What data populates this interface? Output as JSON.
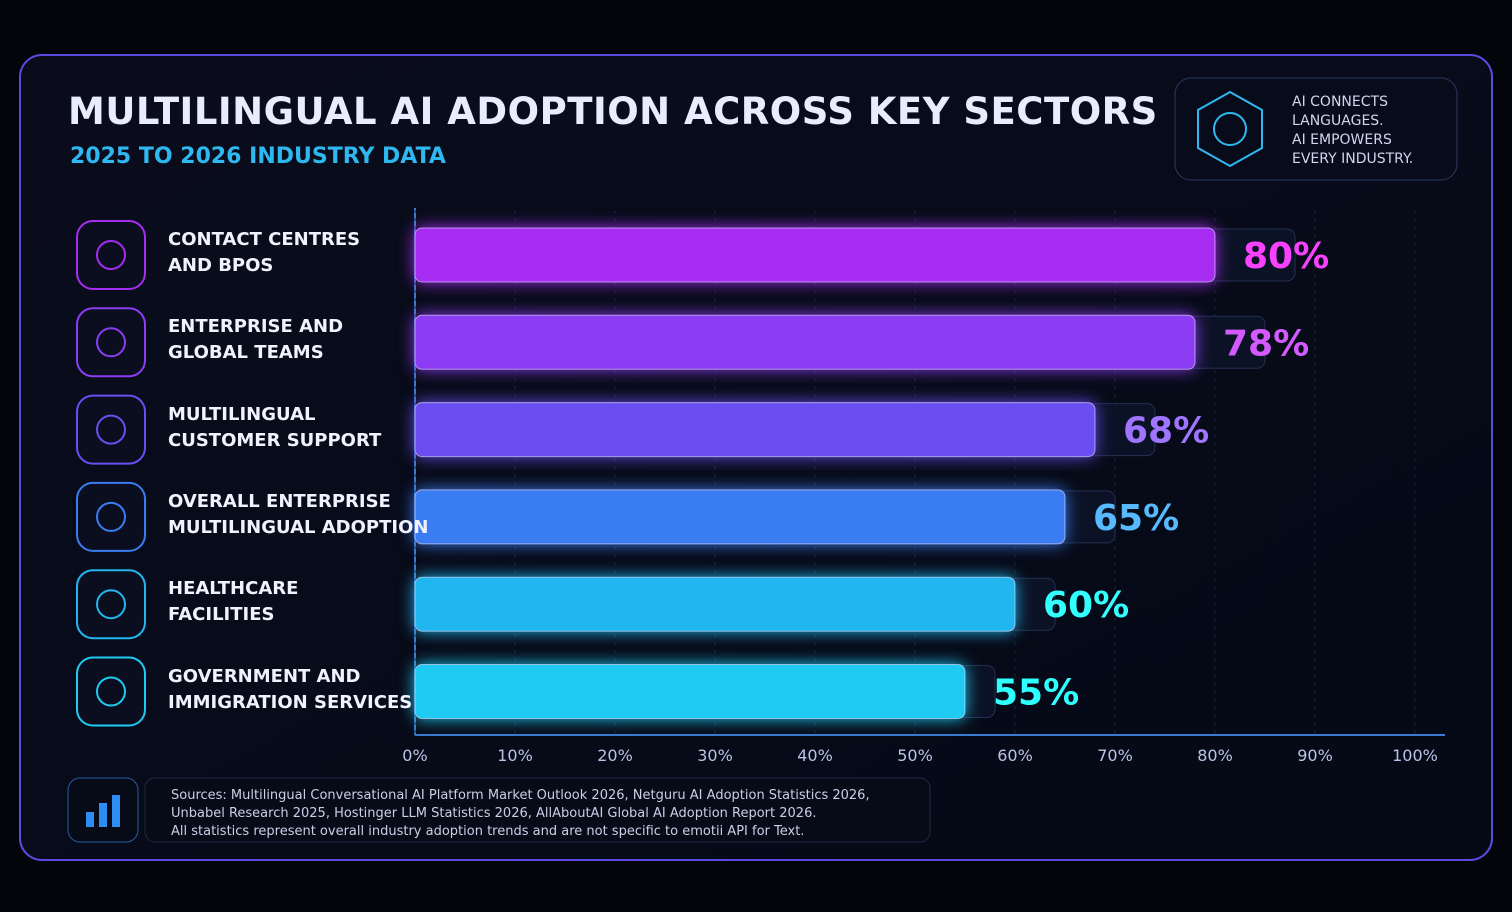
{
  "chart_data": {
    "type": "hbar",
    "title": "MULTILINGUAL AI ADOPTION ACROSS KEY SECTORS",
    "subtitle": "2025 TO 2026 INDUSTRY DATA",
    "tagline": "AI CONNECTS\nLANGUAGES.\nAI EMPOWERS\nEVERY INDUSTRY.",
    "note": "Sources: Multilingual Conversational AI Platform Market Outlook 2026, Netguru AI Adoption Statistics 2026,\nUnbabel Research 2025, Hostinger LLM Statistics 2026, AllAboutAI Global AI Adoption Report 2026.\nAll statistics represent overall industry adoption trends and are not specific to emotii API for Text.",
    "categories": [
      "CONTACT CENTRES\nAND BPOS",
      "ENTERPRISE AND\nGLOBAL TEAMS",
      "MULTILINGUAL\nCUSTOMER SUPPORT",
      "OVERALL ENTERPRISE\nMULTILINGUAL ADOPTION",
      "HEALTHCARE\nFACILITIES",
      "GOVERNMENT AND\nIMMIGRATION SERVICES"
    ],
    "values": [
      80,
      78,
      68,
      65,
      60,
      55
    ],
    "value_labels": [
      "80%",
      "78%",
      "68%",
      "65%",
      "60%",
      "55%"
    ],
    "colors": [
      "#a62cf2",
      "#8c3cf2",
      "#6a4ef2",
      "#3a7cf2",
      "#22b6f0",
      "#1fcbf2"
    ],
    "xlim": [
      0,
      100
    ],
    "xticks": [
      {
        "value": 0,
        "label": "0%"
      },
      {
        "value": 10,
        "label": "10%"
      },
      {
        "value": 20,
        "label": "20%"
      },
      {
        "value": 30,
        "label": "30%"
      },
      {
        "value": 40,
        "label": "40%"
      },
      {
        "value": 50,
        "label": "50%"
      },
      {
        "value": 60,
        "label": "60%"
      },
      {
        "value": 70,
        "label": "70%"
      },
      {
        "value": 80,
        "label": "80%"
      },
      {
        "value": 90,
        "label": "90%"
      },
      {
        "value": 100,
        "label": "100%"
      }
    ],
    "grid": true
  }
}
